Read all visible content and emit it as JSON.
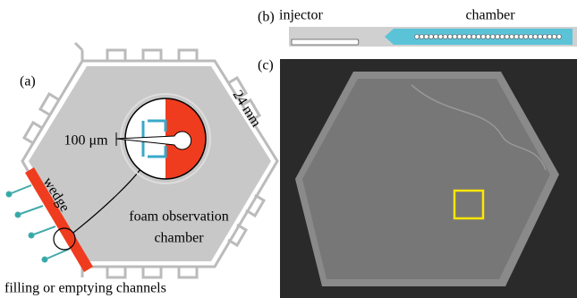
{
  "panel_a": {
    "label": "(a)",
    "size_label": "24 mm",
    "scale_label": "100 μm",
    "wedge_label": "wedge",
    "chamber_label_line1": "foam observation",
    "chamber_label_line2": "chamber",
    "channels_label": "filling or emptying channels"
  },
  "panel_b": {
    "label": "(b)",
    "injector_label": "injector",
    "chamber_label": "chamber"
  },
  "panel_c": {
    "label": "(c)"
  }
}
